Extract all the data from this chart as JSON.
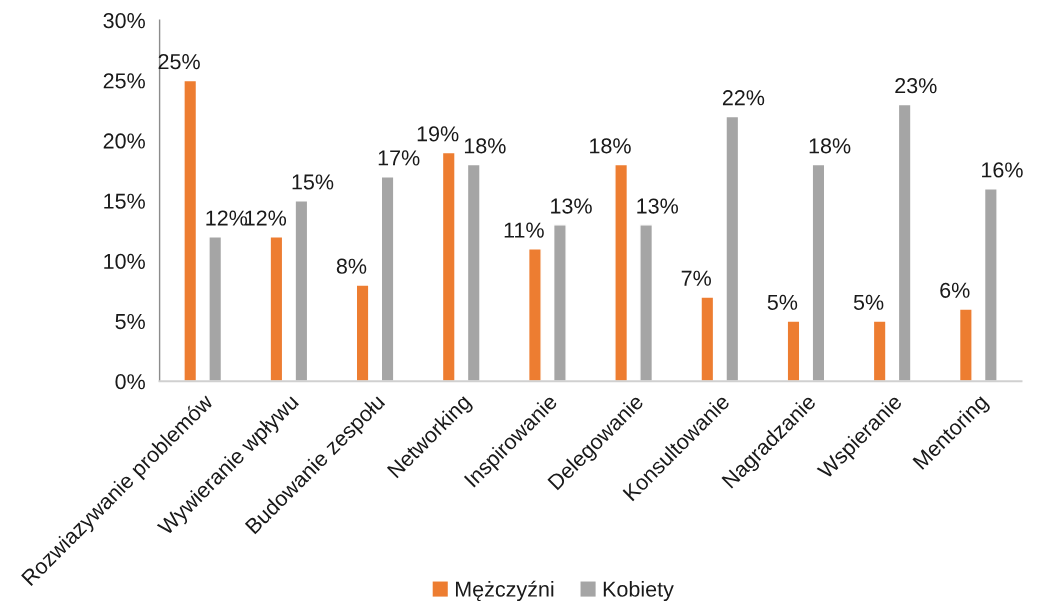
{
  "chart_data": {
    "type": "bar",
    "categories": [
      "Rozwiazywanie problemów",
      "Wywieranie wpływu",
      "Budowanie zespołu",
      "Networking",
      "Inspirowanie",
      "Delegowanie",
      "Konsultowanie",
      "Nagradzanie",
      "Wspieranie",
      "Mentoring"
    ],
    "series": [
      {
        "name": "Mężczyźni",
        "color": "#ed7d31",
        "values": [
          25,
          12,
          8,
          19,
          11,
          18,
          7,
          5,
          5,
          6
        ],
        "value_labels": [
          "25%",
          "12%",
          "8%",
          "19%",
          "11%",
          "18%",
          "7%",
          "5%",
          "5%",
          "6%"
        ]
      },
      {
        "name": "Kobiety",
        "color": "#a5a5a5",
        "values": [
          12,
          15,
          17,
          18,
          13,
          13,
          22,
          18,
          23,
          16
        ],
        "value_labels": [
          "12%",
          "15%",
          "17%",
          "18%",
          "13%",
          "13%",
          "22%",
          "18%",
          "23%",
          "16%"
        ]
      }
    ],
    "ylim": [
      0,
      30
    ],
    "yticks": [
      {
        "value": 0,
        "label": "0%"
      },
      {
        "value": 5,
        "label": "5%"
      },
      {
        "value": 10,
        "label": "10%"
      },
      {
        "value": 15,
        "label": "15%"
      },
      {
        "value": 20,
        "label": "20%"
      },
      {
        "value": 25,
        "label": "25%"
      },
      {
        "value": 30,
        "label": "30%"
      }
    ],
    "legend": "bottom",
    "grid": false
  }
}
